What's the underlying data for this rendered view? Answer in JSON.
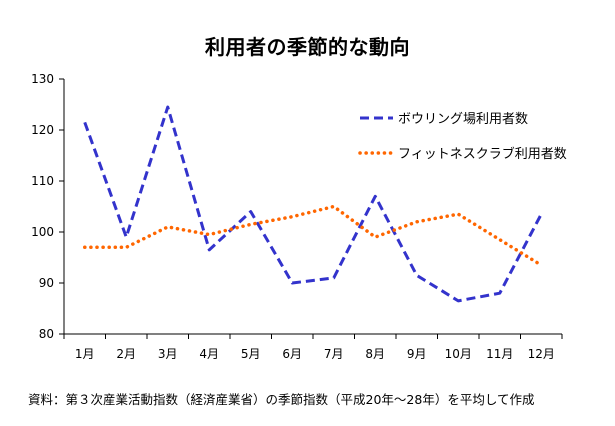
{
  "chart_data": {
    "type": "line",
    "title": "利用者の季節的な動向",
    "categories": [
      "1月",
      "2月",
      "3月",
      "4月",
      "5月",
      "6月",
      "7月",
      "8月",
      "9月",
      "10月",
      "11月",
      "12月"
    ],
    "series": [
      {
        "name": "ボウリング場利用者数",
        "color": "#3333cc",
        "style": "dashed",
        "values": [
          121.5,
          99,
          124.5,
          96.5,
          104,
          90,
          91,
          107,
          91.5,
          86.5,
          88,
          103.5
        ]
      },
      {
        "name": "フィットネスクラブ利用者数",
        "color": "#ff6600",
        "style": "dotted",
        "values": [
          97,
          97,
          101,
          99.5,
          101.5,
          103,
          105,
          99,
          102,
          103.5,
          98.5,
          93.5
        ]
      }
    ],
    "ylim": [
      80,
      130
    ],
    "yticks": [
      "80",
      "90",
      "100",
      "110",
      "120",
      "130"
    ],
    "xlabel": "",
    "ylabel": "",
    "grid": false,
    "legend": "top-right"
  },
  "source_note": "資料：第３次産業活動指数（経済産業省）の季節指数（平成20年～28年）を平均して作成"
}
